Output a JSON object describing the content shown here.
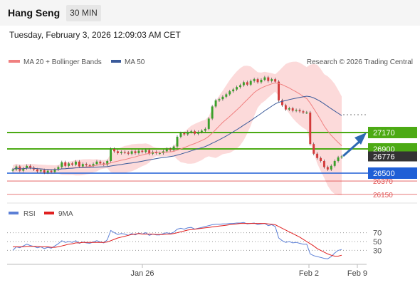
{
  "header": {
    "symbol": "Hang Seng",
    "timeframe": "30 MIN"
  },
  "datetime": "Tuesday, February 3, 2026 12:09:03 AM CET",
  "legend": {
    "ma20_bb": "MA 20 + Bollinger Bands",
    "ma50": "MA 50",
    "credit": "Research © 2026 Trading Central"
  },
  "rsi_legend": {
    "rsi": "RSI",
    "ma9": "9MA"
  },
  "colors": {
    "bb_fill": "#fbd4d4",
    "ma20": "#f08080",
    "ma50": "#3a5a9a",
    "green_level": "#4caa14",
    "blue_level": "#1f5fd6",
    "red_level": "#e05050",
    "price_box": "#333333",
    "arrow": "#2e6ab3"
  },
  "chart_data": [
    {
      "type": "candlestick",
      "ylim": [
        26080,
        27400
      ],
      "levels": [
        {
          "value": 27170,
          "kind": "resistance",
          "label": "27170"
        },
        {
          "value": 26900,
          "kind": "resistance",
          "label": "26900"
        },
        {
          "value": 26500,
          "kind": "support",
          "label": "26500"
        },
        {
          "value": 26370,
          "kind": "support",
          "label": "26370"
        },
        {
          "value": 26150,
          "kind": "support",
          "label": "26150"
        }
      ],
      "last_price": {
        "value": 26776,
        "label": "26776"
      },
      "x_ticks": [
        "Jan 26",
        "Feb 2",
        "Feb 9"
      ],
      "closes": [
        26560,
        26610,
        26540,
        26580,
        26620,
        26590,
        26560,
        26530,
        26550,
        26510,
        26540,
        26520,
        26560,
        26600,
        26680,
        26620,
        26660,
        26640,
        26690,
        26610,
        26650,
        26630,
        26620,
        26650,
        26690,
        26660,
        26640,
        26700,
        26900,
        26860,
        26830,
        26850,
        26840,
        26820,
        26860,
        26830,
        26870,
        26850,
        26880,
        26820,
        26850,
        26830,
        26830,
        26860,
        26900,
        26880,
        26940,
        27100,
        27160,
        27140,
        27180,
        27190,
        27150,
        27180,
        27200,
        27230,
        27400,
        27600,
        27700,
        27720,
        27760,
        27800,
        27850,
        27880,
        27920,
        27950,
        28000,
        27960,
        28020,
        28050,
        28000,
        28040,
        28080,
        28020,
        28050,
        28010,
        27700,
        27620,
        27550,
        27570,
        27530,
        27540,
        27520,
        27500,
        27500,
        26980,
        26820,
        26750,
        26700,
        26600,
        26560,
        26620,
        26700,
        26760,
        26776
      ]
    },
    {
      "type": "line",
      "title": "RSI",
      "series": [
        {
          "name": "RSI"
        },
        {
          "name": "9MA"
        }
      ],
      "y_ticks": [
        70,
        50,
        30
      ],
      "ylim": [
        0,
        100
      ],
      "rsi": [
        30,
        38,
        36,
        40,
        44,
        41,
        39,
        36,
        38,
        34,
        37,
        35,
        40,
        45,
        52,
        48,
        50,
        48,
        52,
        46,
        49,
        47,
        46,
        49,
        52,
        49,
        47,
        54,
        75,
        70,
        66,
        68,
        67,
        64,
        68,
        65,
        69,
        67,
        70,
        64,
        67,
        65,
        65,
        68,
        70,
        68,
        71,
        78,
        80,
        78,
        81,
        82,
        78,
        80,
        82,
        84,
        86,
        88,
        89,
        89,
        90,
        90,
        91,
        91,
        92,
        92,
        93,
        90,
        91,
        92,
        88,
        90,
        91,
        86,
        88,
        84,
        58,
        52,
        48,
        50,
        47,
        48,
        46,
        44,
        44,
        22,
        18,
        16,
        14,
        12,
        11,
        16,
        24,
        30,
        32
      ],
      "ma9": [
        38,
        38,
        38,
        38,
        39,
        39,
        39,
        39,
        38,
        38,
        38,
        37,
        37,
        38,
        40,
        42,
        44,
        45,
        47,
        47,
        48,
        48,
        48,
        48,
        48,
        48,
        48,
        49,
        52,
        55,
        58,
        60,
        62,
        64,
        66,
        67,
        68,
        67,
        67,
        67,
        67,
        66,
        66,
        66,
        67,
        67,
        68,
        70,
        72,
        74,
        76,
        77,
        78,
        79,
        80,
        81,
        82,
        83,
        84,
        85,
        86,
        87,
        88,
        89,
        90,
        91,
        91,
        91,
        91,
        91,
        91,
        91,
        91,
        90,
        89,
        88,
        84,
        80,
        76,
        72,
        68,
        64,
        60,
        55,
        50,
        45,
        40,
        34,
        30,
        26,
        22,
        19,
        17,
        17,
        19
      ]
    }
  ]
}
